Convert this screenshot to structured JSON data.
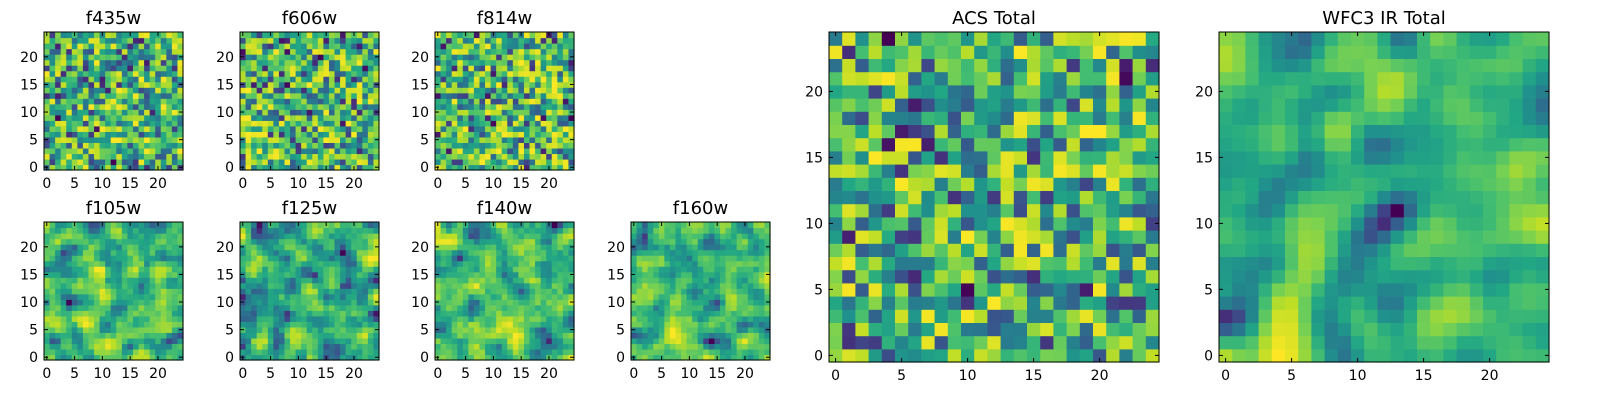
{
  "chart_data": {
    "type": "heatmap",
    "colormap": "viridis",
    "xlim": [
      -0.5,
      24.5
    ],
    "ylim": [
      -0.5,
      24.5
    ],
    "grid": false,
    "legend": "none",
    "panels": [
      {
        "title": "f435w",
        "xticks": [
          "0",
          "5",
          "10",
          "15",
          "20"
        ],
        "yticks": [
          "0",
          "5",
          "10",
          "15",
          "20"
        ],
        "seed": 101,
        "smooth": 0
      },
      {
        "title": "f606w",
        "xticks": [
          "0",
          "5",
          "10",
          "15",
          "20"
        ],
        "yticks": [
          "0",
          "5",
          "10",
          "15",
          "20"
        ],
        "seed": 202,
        "smooth": 0
      },
      {
        "title": "f814w",
        "xticks": [
          "0",
          "5",
          "10",
          "15",
          "20"
        ],
        "yticks": [
          "0",
          "5",
          "10",
          "15",
          "20"
        ],
        "seed": 303,
        "smooth": 0
      },
      {
        "title": "f105w",
        "xticks": [
          "0",
          "5",
          "10",
          "15",
          "20"
        ],
        "yticks": [
          "0",
          "5",
          "10",
          "15",
          "20"
        ],
        "seed": 404,
        "smooth": 1
      },
      {
        "title": "f125w",
        "xticks": [
          "0",
          "5",
          "10",
          "15",
          "20"
        ],
        "yticks": [
          "0",
          "5",
          "10",
          "15",
          "20"
        ],
        "seed": 505,
        "smooth": 1
      },
      {
        "title": "f140w",
        "xticks": [
          "0",
          "5",
          "10",
          "15",
          "20"
        ],
        "yticks": [
          "0",
          "5",
          "10",
          "15",
          "20"
        ],
        "seed": 606,
        "smooth": 1
      },
      {
        "title": "f160w",
        "xticks": [
          "0",
          "5",
          "10",
          "15",
          "20"
        ],
        "yticks": [
          "0",
          "5",
          "10",
          "15",
          "20"
        ],
        "seed": 707,
        "smooth": 1
      },
      {
        "title": "ACS Total",
        "xticks": [
          "0",
          "5",
          "10",
          "15",
          "20"
        ],
        "yticks": [
          "0",
          "5",
          "10",
          "15",
          "20"
        ],
        "seed": 808,
        "smooth": 0
      },
      {
        "title": "WFC3 IR Total",
        "xticks": [
          "0",
          "5",
          "10",
          "15",
          "20"
        ],
        "yticks": [
          "0",
          "5",
          "10",
          "15",
          "20"
        ],
        "seed": 909,
        "smooth": 2
      }
    ]
  }
}
